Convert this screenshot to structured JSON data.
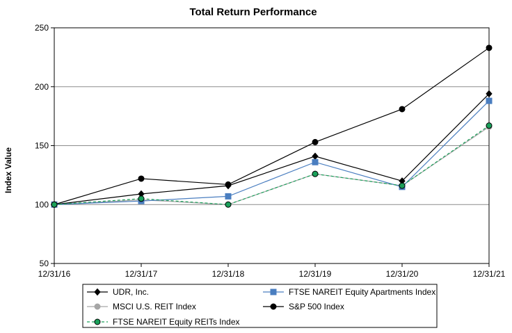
{
  "chart_data": {
    "type": "line",
    "title": "Total Return Performance",
    "xlabel": "",
    "ylabel": "Index Value",
    "categories": [
      "12/31/16",
      "12/31/17",
      "12/31/18",
      "12/31/19",
      "12/31/20",
      "12/31/21"
    ],
    "ylim": [
      50,
      250
    ],
    "yticks": [
      "50",
      "100",
      "150",
      "200",
      "250"
    ],
    "grid": "horizontal",
    "legend_placement": "bottom",
    "series": [
      {
        "name": "UDR, Inc.",
        "values": [
          100,
          109,
          116,
          141,
          120,
          194
        ],
        "color": "#000000",
        "marker": "diamond",
        "dash": "solid"
      },
      {
        "name": "FTSE NAREIT Equity Apartments Index",
        "values": [
          100,
          103,
          107,
          136,
          115,
          188
        ],
        "color": "#4a7ec0",
        "marker": "square",
        "dash": "solid"
      },
      {
        "name": "MSCI U.S. REIT Index",
        "values": [
          100,
          104,
          100,
          126,
          116,
          166
        ],
        "color": "#a6a6a6",
        "marker": "circle",
        "dash": "solid"
      },
      {
        "name": "S&P 500 Index",
        "values": [
          100,
          122,
          117,
          153,
          181,
          233
        ],
        "color": "#000000",
        "marker": "circle",
        "dash": "solid"
      },
      {
        "name": "FTSE NAREIT Equity REITs Index",
        "values": [
          100,
          105,
          100,
          126,
          116,
          167
        ],
        "color": "#1aa05a",
        "marker": "circle",
        "dash": "dashed"
      }
    ]
  }
}
